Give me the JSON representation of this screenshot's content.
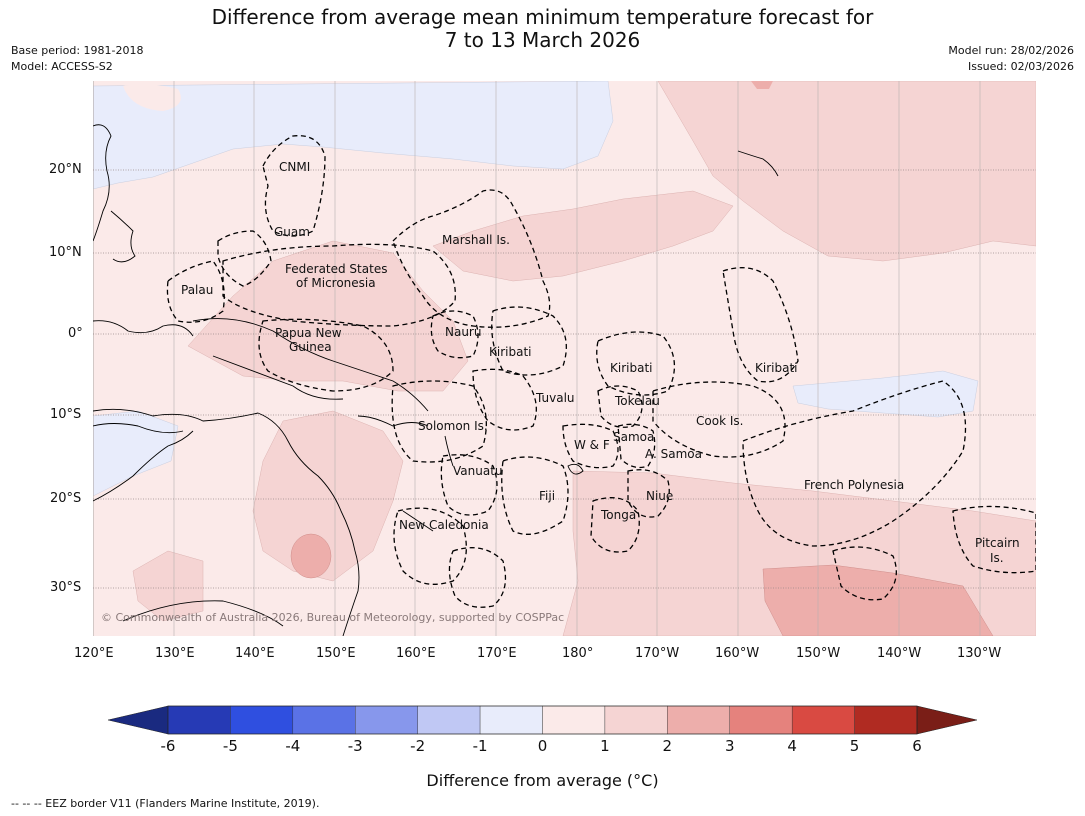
{
  "title_line1": "Difference from average mean minimum temperature forecast for",
  "title_line2": "7 to 13 March 2026",
  "base_period": "Base period: 1981-2018",
  "model": "Model: ACCESS-S2",
  "model_run": "Model run: 28/02/2026",
  "issued": "Issued: 02/03/2026",
  "copyright": "© Commonwealth of Australia 2026, Bureau of Meteorology, supported by COSPPac",
  "lon_labels": [
    "120°E",
    "130°E",
    "140°E",
    "150°E",
    "160°E",
    "170°E",
    "180°",
    "170°W",
    "160°W",
    "150°W",
    "140°W",
    "130°W"
  ],
  "lat_labels": [
    "20°N",
    "10°N",
    "0°",
    "10°S",
    "20°S",
    "30°S"
  ],
  "regions": [
    "CNMI",
    "Guam",
    "Marshall Is.",
    "Federated States",
    "of Micronesia",
    "Palau",
    "Papua New",
    "Guinea",
    "Nauru",
    "Kiribati",
    "Kiribati",
    "Kiribati",
    "Tuvalu",
    "Tokelau",
    "Cook Is.",
    "Solomon Is.",
    "W & F",
    "Samoa",
    "A. Samoa",
    "Vanuatu",
    "Fiji",
    "Niue",
    "Tonga",
    "French Polynesia",
    "New Caledonia",
    "Pitcairn",
    "Is."
  ],
  "colorbar": {
    "ticks": [
      "-6",
      "-5",
      "-4",
      "-3",
      "-2",
      "-1",
      "0",
      "1",
      "2",
      "3",
      "4",
      "5",
      "6"
    ],
    "colors": [
      "#263ab5",
      "#2f4fe0",
      "#5a72e6",
      "#8797ec",
      "#c0c8f4",
      "#e8ecfb",
      "#fbeae9",
      "#f5d4d3",
      "#edaeab",
      "#e5827d",
      "#d94a42",
      "#b02b22"
    ],
    "under_color": "#1a2a80",
    "over_color": "#7a1e17",
    "label": "Difference from average (°C)"
  },
  "footer": "--  --  -- EEZ border V11 (Flanders Marine Institute, 2019)."
}
